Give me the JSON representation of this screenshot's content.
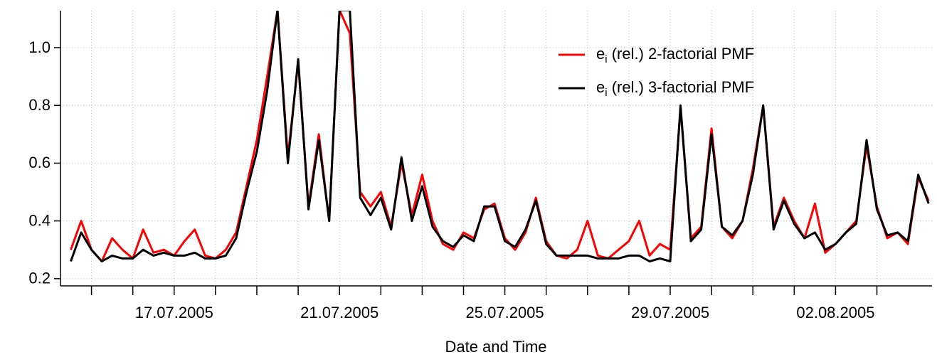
{
  "chart_data": {
    "type": "line",
    "x_label": "Date and Time",
    "xlim": [
      "14.07.2005 06:00",
      "04.08.2005 08:00"
    ],
    "ylim": [
      0.175,
      1.128
    ],
    "yticks": [
      0.2,
      0.4,
      0.6,
      0.8,
      {
        "value": 1,
        "label": "1.0"
      }
    ],
    "xticks": [
      {
        "value": "15.07.2005",
        "label": null
      },
      {
        "value": "16.07.2005",
        "label": null
      },
      "17.07.2005",
      {
        "value": "18.07.2005",
        "label": null
      },
      {
        "value": "19.07.2005",
        "label": null
      },
      {
        "value": "20.07.2005",
        "label": null
      },
      "21.07.2005",
      {
        "value": "22.07.2005",
        "label": null
      },
      {
        "value": "23.07.2005",
        "label": null
      },
      {
        "value": "24.07.2005",
        "label": null
      },
      "25.07.2005",
      {
        "value": "26.07.2005",
        "label": null
      },
      {
        "value": "27.07.2005",
        "label": null
      },
      {
        "value": "28.07.2005",
        "label": null
      },
      "29.07.2005",
      {
        "value": "30.07.2005",
        "label": null
      },
      {
        "value": "31.07.2005",
        "label": null
      },
      {
        "value": "01.08.2005",
        "label": null
      },
      "02.08.2005",
      {
        "value": "03.08.2005",
        "label": null
      }
    ],
    "grid": true,
    "legend": "upper right",
    "x": [
      "14.07.2005 12:00",
      "14.07.2005 18:00",
      "15.07.2005 00:00",
      "15.07.2005 06:00",
      "15.07.2005 12:00",
      "15.07.2005 18:00",
      "16.07.2005 00:00",
      "16.07.2005 06:00",
      "16.07.2005 12:00",
      "16.07.2005 18:00",
      "17.07.2005 00:00",
      "17.07.2005 06:00",
      "17.07.2005 12:00",
      "17.07.2005 18:00",
      "18.07.2005 00:00",
      "18.07.2005 06:00",
      "18.07.2005 12:00",
      "18.07.2005 18:00",
      "19.07.2005 00:00",
      "19.07.2005 06:00",
      "19.07.2005 12:00",
      "19.07.2005 18:00",
      "20.07.2005 00:00",
      "20.07.2005 06:00",
      "20.07.2005 12:00",
      "20.07.2005 18:00",
      "21.07.2005 00:00",
      "21.07.2005 06:00",
      "21.07.2005 12:00",
      "21.07.2005 18:00",
      "22.07.2005 00:00",
      "22.07.2005 06:00",
      "22.07.2005 12:00",
      "22.07.2005 18:00",
      "23.07.2005 00:00",
      "23.07.2005 06:00",
      "23.07.2005 12:00",
      "23.07.2005 18:00",
      "24.07.2005 00:00",
      "24.07.2005 06:00",
      "24.07.2005 12:00",
      "24.07.2005 18:00",
      "25.07.2005 00:00",
      "25.07.2005 06:00",
      "25.07.2005 12:00",
      "25.07.2005 18:00",
      "26.07.2005 00:00",
      "26.07.2005 06:00",
      "26.07.2005 12:00",
      "26.07.2005 18:00",
      "27.07.2005 00:00",
      "27.07.2005 06:00",
      "27.07.2005 12:00",
      "27.07.2005 18:00",
      "28.07.2005 00:00",
      "28.07.2005 06:00",
      "28.07.2005 12:00",
      "28.07.2005 18:00",
      "29.07.2005 00:00",
      "29.07.2005 06:00",
      "29.07.2005 12:00",
      "29.07.2005 18:00",
      "30.07.2005 00:00",
      "30.07.2005 06:00",
      "30.07.2005 12:00",
      "30.07.2005 18:00",
      "31.07.2005 00:00",
      "31.07.2005 06:00",
      "31.07.2005 12:00",
      "31.07.2005 18:00",
      "01.08.2005 00:00",
      "01.08.2005 06:00",
      "01.08.2005 12:00",
      "01.08.2005 18:00",
      "02.08.2005 00:00",
      "02.08.2005 06:00",
      "02.08.2005 12:00",
      "02.08.2005 18:00",
      "03.08.2005 00:00",
      "03.08.2005 06:00",
      "03.08.2005 12:00",
      "03.08.2005 18:00",
      "04.08.2005 00:00",
      "04.08.2005 06:00"
    ],
    "series": [
      {
        "name": "ei (rel.) 2-factorial PMF",
        "color": "#ff0000",
        "values": [
          0.3,
          0.4,
          0.3,
          0.26,
          0.34,
          0.3,
          0.27,
          0.37,
          0.29,
          0.3,
          0.28,
          0.33,
          0.37,
          0.28,
          0.27,
          0.3,
          0.36,
          0.52,
          0.68,
          0.9,
          1.13,
          0.62,
          0.95,
          0.45,
          0.7,
          0.4,
          1.13,
          1.05,
          0.5,
          0.45,
          0.5,
          0.38,
          0.6,
          0.42,
          0.56,
          0.4,
          0.32,
          0.3,
          0.36,
          0.34,
          0.44,
          0.46,
          0.34,
          0.3,
          0.36,
          0.48,
          0.33,
          0.28,
          0.27,
          0.3,
          0.4,
          0.28,
          0.27,
          0.3,
          0.33,
          0.4,
          0.28,
          0.32,
          0.3,
          0.79,
          0.34,
          0.38,
          0.72,
          0.38,
          0.34,
          0.4,
          0.58,
          0.8,
          0.38,
          0.48,
          0.4,
          0.34,
          0.46,
          0.29,
          0.32,
          0.36,
          0.4,
          0.66,
          0.45,
          0.34,
          0.36,
          0.32,
          0.55,
          0.47
        ]
      },
      {
        "name": "ei (rel.) 3-factorial PMF",
        "color": "#000000",
        "values": [
          0.26,
          0.36,
          0.3,
          0.26,
          0.28,
          0.27,
          0.27,
          0.3,
          0.28,
          0.29,
          0.28,
          0.28,
          0.29,
          0.27,
          0.27,
          0.28,
          0.34,
          0.5,
          0.64,
          0.85,
          1.13,
          0.6,
          0.96,
          0.44,
          0.68,
          0.4,
          1.13,
          1.13,
          0.48,
          0.42,
          0.48,
          0.37,
          0.62,
          0.4,
          0.52,
          0.38,
          0.33,
          0.31,
          0.35,
          0.33,
          0.45,
          0.45,
          0.33,
          0.31,
          0.37,
          0.47,
          0.32,
          0.28,
          0.28,
          0.28,
          0.28,
          0.27,
          0.27,
          0.27,
          0.28,
          0.28,
          0.26,
          0.27,
          0.26,
          0.8,
          0.33,
          0.37,
          0.7,
          0.38,
          0.35,
          0.4,
          0.56,
          0.8,
          0.37,
          0.47,
          0.39,
          0.34,
          0.36,
          0.3,
          0.32,
          0.36,
          0.39,
          0.68,
          0.44,
          0.35,
          0.36,
          0.33,
          0.56,
          0.46
        ]
      }
    ]
  }
}
